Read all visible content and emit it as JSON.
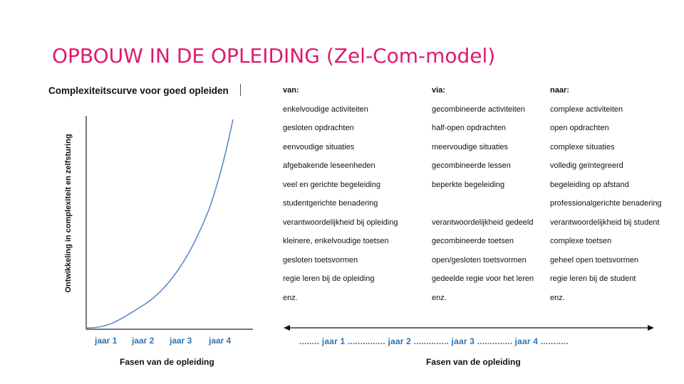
{
  "slide": {
    "title": "OPBOUW IN DE OPLEIDING (Zel-Com-model)"
  },
  "chart_data": {
    "type": "line",
    "title": "Complexiteitscurve voor goed opleiden",
    "ylabel": "Ontwikkeling in complexiteit en zelfsturing",
    "xlabel": "Fasen van de opleiding",
    "categories": [
      "jaar 1",
      "jaar 2",
      "jaar 3",
      "jaar 4"
    ],
    "colors": {
      "curve": "#5b8bc9",
      "axis": "#222222",
      "ticks": "#2e75b6"
    }
  },
  "columns": [
    {
      "header": "van:",
      "rows": [
        "enkelvoudige  activiteiten",
        "gesloten opdrachten",
        "eenvoudige situaties",
        "afgebakende leseenheden",
        "veel en gerichte begeleiding",
        "studentgerichte benadering",
        "verantwoordelijkheid bij opleiding",
        "kleinere, enkelvoudige toetsen",
        "gesloten toetsvormen",
        "regie leren bij de opleiding",
        "enz."
      ]
    },
    {
      "header": "via:",
      "rows": [
        "gecombineerde activiteiten",
        "half-open opdrachten",
        "meervoudige situaties",
        "gecombineerde lessen",
        "beperkte begeleiding",
        "",
        "verantwoordelijkheid gedeeld",
        "gecombineerde toetsen",
        "open/gesloten toetsvormen",
        "gedeelde regie voor het leren",
        "enz."
      ]
    },
    {
      "header": "naar:",
      "rows": [
        "complexe activiteiten",
        "open opdrachten",
        "complexe situaties",
        "volledig geïntegreerd",
        "begeleiding op afstand",
        "professionalgerichte benadering",
        "verantwoordelijkheid bij student",
        "complexe toetsen",
        "geheel open toetsvormen",
        "regie leren bij de student",
        "enz."
      ]
    }
  ],
  "timeline": {
    "text": "........  jaar 1  ...............  jaar 2  ..............  jaar 3  ..............  jaar 4  ...........",
    "label": "Fasen van de opleiding"
  }
}
